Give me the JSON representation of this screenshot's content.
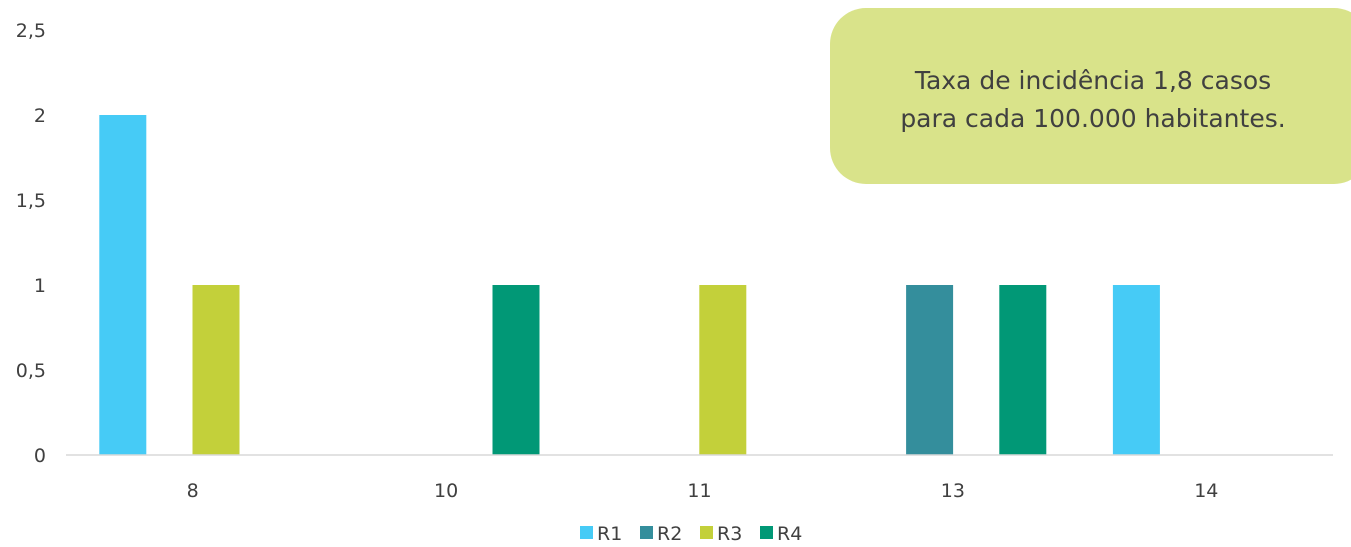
{
  "chart_data": {
    "type": "bar",
    "categories": [
      "8",
      "10",
      "11",
      "13",
      "14"
    ],
    "series": [
      {
        "name": "R1",
        "values": [
          2,
          0,
          0,
          0,
          1
        ]
      },
      {
        "name": "R2",
        "values": [
          0,
          0,
          0,
          1,
          0
        ]
      },
      {
        "name": "R3",
        "values": [
          1,
          0,
          1,
          0,
          0
        ]
      },
      {
        "name": "R4",
        "values": [
          0,
          1,
          0,
          1,
          0
        ]
      }
    ],
    "colors": {
      "R1": "#46cbf6",
      "R2": "#348e9c",
      "R3": "#c3d03a",
      "R4": "#019876"
    },
    "ylim": [
      0,
      2.5
    ],
    "yticks": [
      "0",
      "0,5",
      "1",
      "1,5",
      "2",
      "2,5"
    ],
    "grid": false,
    "legend": "bottom-center",
    "title": "",
    "xlabel": "",
    "ylabel": ""
  },
  "annotation": {
    "line1": "Taxa de incidência 1,8 casos",
    "line2": "para cada 100.000 habitantes."
  }
}
